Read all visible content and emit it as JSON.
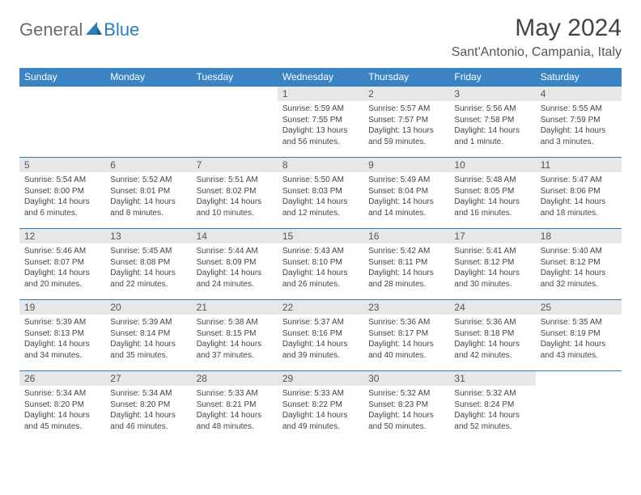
{
  "brand": {
    "part1": "General",
    "part2": "Blue"
  },
  "title": "May 2024",
  "location": "Sant'Antonio, Campania, Italy",
  "day_headers": [
    "Sunday",
    "Monday",
    "Tuesday",
    "Wednesday",
    "Thursday",
    "Friday",
    "Saturday"
  ],
  "colors": {
    "header_bg": "#3b84c4",
    "header_text": "#ffffff",
    "daynum_bg": "#e7e7e7",
    "week_border": "#2a7fba",
    "brand_gray": "#6c6c6c",
    "brand_blue": "#2a7fba"
  },
  "weeks": [
    [
      {
        "n": "",
        "sr": "",
        "ss": "",
        "dl": ""
      },
      {
        "n": "",
        "sr": "",
        "ss": "",
        "dl": ""
      },
      {
        "n": "",
        "sr": "",
        "ss": "",
        "dl": ""
      },
      {
        "n": "1",
        "sr": "5:59 AM",
        "ss": "7:55 PM",
        "dl": "13 hours and 56 minutes."
      },
      {
        "n": "2",
        "sr": "5:57 AM",
        "ss": "7:57 PM",
        "dl": "13 hours and 59 minutes."
      },
      {
        "n": "3",
        "sr": "5:56 AM",
        "ss": "7:58 PM",
        "dl": "14 hours and 1 minute."
      },
      {
        "n": "4",
        "sr": "5:55 AM",
        "ss": "7:59 PM",
        "dl": "14 hours and 3 minutes."
      }
    ],
    [
      {
        "n": "5",
        "sr": "5:54 AM",
        "ss": "8:00 PM",
        "dl": "14 hours and 6 minutes."
      },
      {
        "n": "6",
        "sr": "5:52 AM",
        "ss": "8:01 PM",
        "dl": "14 hours and 8 minutes."
      },
      {
        "n": "7",
        "sr": "5:51 AM",
        "ss": "8:02 PM",
        "dl": "14 hours and 10 minutes."
      },
      {
        "n": "8",
        "sr": "5:50 AM",
        "ss": "8:03 PM",
        "dl": "14 hours and 12 minutes."
      },
      {
        "n": "9",
        "sr": "5:49 AM",
        "ss": "8:04 PM",
        "dl": "14 hours and 14 minutes."
      },
      {
        "n": "10",
        "sr": "5:48 AM",
        "ss": "8:05 PM",
        "dl": "14 hours and 16 minutes."
      },
      {
        "n": "11",
        "sr": "5:47 AM",
        "ss": "8:06 PM",
        "dl": "14 hours and 18 minutes."
      }
    ],
    [
      {
        "n": "12",
        "sr": "5:46 AM",
        "ss": "8:07 PM",
        "dl": "14 hours and 20 minutes."
      },
      {
        "n": "13",
        "sr": "5:45 AM",
        "ss": "8:08 PM",
        "dl": "14 hours and 22 minutes."
      },
      {
        "n": "14",
        "sr": "5:44 AM",
        "ss": "8:09 PM",
        "dl": "14 hours and 24 minutes."
      },
      {
        "n": "15",
        "sr": "5:43 AM",
        "ss": "8:10 PM",
        "dl": "14 hours and 26 minutes."
      },
      {
        "n": "16",
        "sr": "5:42 AM",
        "ss": "8:11 PM",
        "dl": "14 hours and 28 minutes."
      },
      {
        "n": "17",
        "sr": "5:41 AM",
        "ss": "8:12 PM",
        "dl": "14 hours and 30 minutes."
      },
      {
        "n": "18",
        "sr": "5:40 AM",
        "ss": "8:12 PM",
        "dl": "14 hours and 32 minutes."
      }
    ],
    [
      {
        "n": "19",
        "sr": "5:39 AM",
        "ss": "8:13 PM",
        "dl": "14 hours and 34 minutes."
      },
      {
        "n": "20",
        "sr": "5:39 AM",
        "ss": "8:14 PM",
        "dl": "14 hours and 35 minutes."
      },
      {
        "n": "21",
        "sr": "5:38 AM",
        "ss": "8:15 PM",
        "dl": "14 hours and 37 minutes."
      },
      {
        "n": "22",
        "sr": "5:37 AM",
        "ss": "8:16 PM",
        "dl": "14 hours and 39 minutes."
      },
      {
        "n": "23",
        "sr": "5:36 AM",
        "ss": "8:17 PM",
        "dl": "14 hours and 40 minutes."
      },
      {
        "n": "24",
        "sr": "5:36 AM",
        "ss": "8:18 PM",
        "dl": "14 hours and 42 minutes."
      },
      {
        "n": "25",
        "sr": "5:35 AM",
        "ss": "8:19 PM",
        "dl": "14 hours and 43 minutes."
      }
    ],
    [
      {
        "n": "26",
        "sr": "5:34 AM",
        "ss": "8:20 PM",
        "dl": "14 hours and 45 minutes."
      },
      {
        "n": "27",
        "sr": "5:34 AM",
        "ss": "8:20 PM",
        "dl": "14 hours and 46 minutes."
      },
      {
        "n": "28",
        "sr": "5:33 AM",
        "ss": "8:21 PM",
        "dl": "14 hours and 48 minutes."
      },
      {
        "n": "29",
        "sr": "5:33 AM",
        "ss": "8:22 PM",
        "dl": "14 hours and 49 minutes."
      },
      {
        "n": "30",
        "sr": "5:32 AM",
        "ss": "8:23 PM",
        "dl": "14 hours and 50 minutes."
      },
      {
        "n": "31",
        "sr": "5:32 AM",
        "ss": "8:24 PM",
        "dl": "14 hours and 52 minutes."
      },
      {
        "n": "",
        "sr": "",
        "ss": "",
        "dl": ""
      }
    ]
  ],
  "labels": {
    "sunrise": "Sunrise: ",
    "sunset": "Sunset: ",
    "daylight": "Daylight: "
  }
}
